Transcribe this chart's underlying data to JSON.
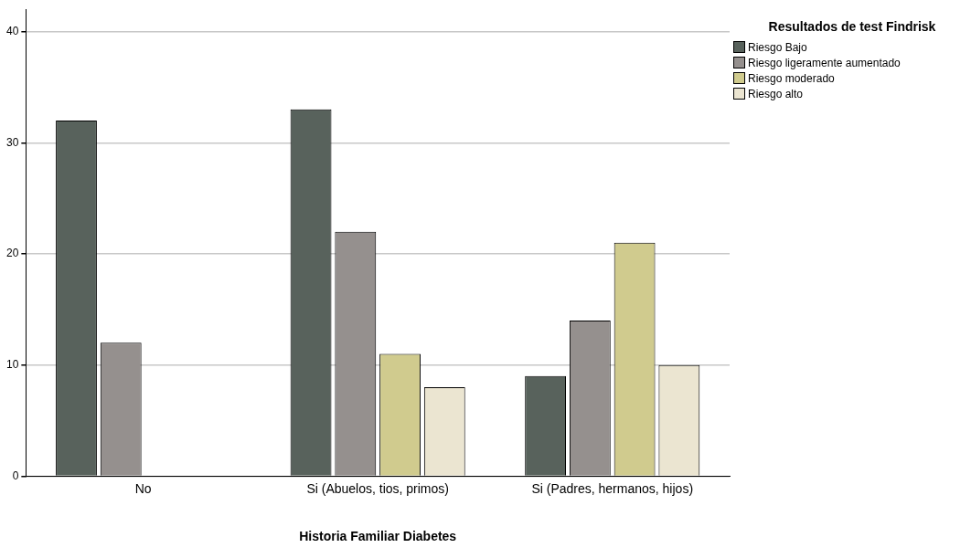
{
  "chart_data": {
    "type": "bar",
    "xlabel": "Historia Familiar Diabetes",
    "legend_title": "Resultados de test Findrisk",
    "categories": [
      "No",
      "Si (Abuelos, tios, primos)",
      "Si (Padres, hermanos, hijos)"
    ],
    "series": [
      {
        "name": "Riesgo Bajo",
        "color": "#58625c",
        "values": [
          32,
          33,
          9
        ]
      },
      {
        "name": "Riesgo ligeramente aumentado",
        "color": "#95908e",
        "values": [
          12,
          22,
          14
        ]
      },
      {
        "name": "Riesgo moderado",
        "color": "#d0cb8e",
        "values": [
          null,
          11,
          21
        ]
      },
      {
        "name": "Riesgo alto",
        "color": "#ebe5d1",
        "values": [
          null,
          8,
          10
        ]
      }
    ],
    "ylim": [
      0,
      42
    ],
    "yticks": [
      0,
      10,
      20,
      30,
      40
    ],
    "grid": "y",
    "legend": "top right"
  }
}
